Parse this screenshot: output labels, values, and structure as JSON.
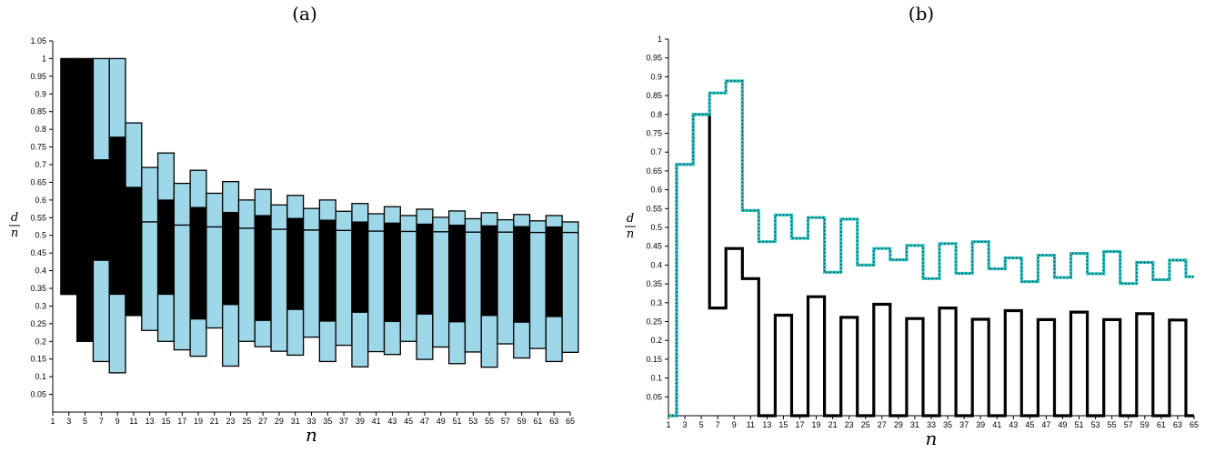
{
  "panel_titles": [
    "(a)",
    "(b)"
  ],
  "chart_data": [
    {
      "type": "bar",
      "subtype": "floating-range",
      "title": "(a)",
      "xlabel": "n",
      "ylabel_num": "d",
      "ylabel_den": "n",
      "xlim": [
        1,
        65
      ],
      "ylim": [
        0,
        1.05
      ],
      "xticks": [
        "1",
        "3",
        "5",
        "7",
        "9",
        "11",
        "13",
        "15",
        "17",
        "19",
        "21",
        "23",
        "25",
        "27",
        "29",
        "31",
        "33",
        "35",
        "37",
        "39",
        "41",
        "43",
        "45",
        "47",
        "49",
        "51",
        "53",
        "55",
        "57",
        "59",
        "61",
        "63",
        "65"
      ],
      "yticks": [
        "0.05",
        "0.1",
        "0.15",
        "0.2",
        "0.25",
        "0.3",
        "0.35",
        "0.4",
        "0.45",
        "0.5",
        "0.55",
        "0.6",
        "0.65",
        "0.7",
        "0.75",
        "0.8",
        "0.85",
        "0.9",
        "0.95",
        "1",
        "1.05"
      ],
      "outer_color": "#9ed7e8",
      "inner_color": "#000000",
      "bars": [
        {
          "x": 3,
          "outer": [
            0.333,
            1.0
          ],
          "inner": [
            0.333,
            1.0
          ]
        },
        {
          "x": 5,
          "outer": [
            0.2,
            1.0
          ],
          "inner": [
            0.2,
            1.0
          ]
        },
        {
          "x": 7,
          "outer": [
            0.143,
            1.0
          ],
          "inner": [
            0.429,
            0.714
          ]
        },
        {
          "x": 9,
          "outer": [
            0.111,
            1.0
          ],
          "inner": [
            0.333,
            0.778
          ]
        },
        {
          "x": 11,
          "outer": [
            0.273,
            0.818
          ],
          "inner": [
            0.273,
            0.636
          ]
        },
        {
          "x": 13,
          "outer": [
            0.231,
            0.692
          ],
          "inner": [
            0.538,
            0.538
          ]
        },
        {
          "x": 15,
          "outer": [
            0.2,
            0.733
          ],
          "inner": [
            0.333,
            0.6
          ]
        },
        {
          "x": 17,
          "outer": [
            0.176,
            0.647
          ],
          "inner": [
            0.529,
            0.529
          ]
        },
        {
          "x": 19,
          "outer": [
            0.158,
            0.684
          ],
          "inner": [
            0.263,
            0.579
          ]
        },
        {
          "x": 21,
          "outer": [
            0.238,
            0.619
          ],
          "inner": [
            0.524,
            0.524
          ]
        },
        {
          "x": 23,
          "outer": [
            0.13,
            0.652
          ],
          "inner": [
            0.304,
            0.565
          ]
        },
        {
          "x": 25,
          "outer": [
            0.2,
            0.6
          ],
          "inner": [
            0.52,
            0.52
          ]
        },
        {
          "x": 27,
          "outer": [
            0.185,
            0.63
          ],
          "inner": [
            0.259,
            0.556
          ]
        },
        {
          "x": 29,
          "outer": [
            0.172,
            0.586
          ],
          "inner": [
            0.517,
            0.517
          ]
        },
        {
          "x": 31,
          "outer": [
            0.161,
            0.613
          ],
          "inner": [
            0.29,
            0.548
          ]
        },
        {
          "x": 33,
          "outer": [
            0.212,
            0.576
          ],
          "inner": [
            0.515,
            0.515
          ]
        },
        {
          "x": 35,
          "outer": [
            0.143,
            0.6
          ],
          "inner": [
            0.257,
            0.543
          ]
        },
        {
          "x": 37,
          "outer": [
            0.189,
            0.568
          ],
          "inner": [
            0.514,
            0.514
          ]
        },
        {
          "x": 39,
          "outer": [
            0.128,
            0.59
          ],
          "inner": [
            0.282,
            0.538
          ]
        },
        {
          "x": 41,
          "outer": [
            0.171,
            0.561
          ],
          "inner": [
            0.512,
            0.512
          ]
        },
        {
          "x": 43,
          "outer": [
            0.163,
            0.581
          ],
          "inner": [
            0.256,
            0.535
          ]
        },
        {
          "x": 45,
          "outer": [
            0.2,
            0.556
          ],
          "inner": [
            0.511,
            0.511
          ]
        },
        {
          "x": 47,
          "outer": [
            0.149,
            0.574
          ],
          "inner": [
            0.277,
            0.532
          ]
        },
        {
          "x": 49,
          "outer": [
            0.184,
            0.551
          ],
          "inner": [
            0.51,
            0.51
          ]
        },
        {
          "x": 51,
          "outer": [
            0.137,
            0.569
          ],
          "inner": [
            0.255,
            0.529
          ]
        },
        {
          "x": 53,
          "outer": [
            0.17,
            0.547
          ],
          "inner": [
            0.509,
            0.509
          ]
        },
        {
          "x": 55,
          "outer": [
            0.127,
            0.564
          ],
          "inner": [
            0.273,
            0.527
          ]
        },
        {
          "x": 57,
          "outer": [
            0.193,
            0.544
          ],
          "inner": [
            0.509,
            0.509
          ]
        },
        {
          "x": 59,
          "outer": [
            0.153,
            0.559
          ],
          "inner": [
            0.254,
            0.525
          ]
        },
        {
          "x": 61,
          "outer": [
            0.18,
            0.541
          ],
          "inner": [
            0.508,
            0.508
          ]
        },
        {
          "x": 63,
          "outer": [
            0.143,
            0.556
          ],
          "inner": [
            0.27,
            0.524
          ]
        },
        {
          "x": 65,
          "outer": [
            0.169,
            0.538
          ],
          "inner": [
            0.508,
            0.508
          ]
        }
      ]
    },
    {
      "type": "line",
      "subtype": "step",
      "title": "(b)",
      "xlabel": "n",
      "ylabel_num": "d",
      "ylabel_den": "n",
      "xlim": [
        1,
        65
      ],
      "ylim": [
        0,
        1
      ],
      "xticks": [
        "1",
        "3",
        "5",
        "7",
        "9",
        "11",
        "13",
        "15",
        "17",
        "19",
        "21",
        "23",
        "25",
        "27",
        "29",
        "31",
        "33",
        "35",
        "37",
        "39",
        "41",
        "43",
        "45",
        "47",
        "49",
        "51",
        "53",
        "55",
        "57",
        "59",
        "61",
        "63",
        "65"
      ],
      "yticks": [
        "0.05",
        "0.1",
        "0.15",
        "0.2",
        "0.25",
        "0.3",
        "0.35",
        "0.4",
        "0.45",
        "0.5",
        "0.55",
        "0.6",
        "0.65",
        "0.7",
        "0.75",
        "0.8",
        "0.85",
        "0.9",
        "0.95",
        "1"
      ],
      "series": [
        {
          "color": "#000000",
          "style": "solid-thick",
          "points": [
            [
              1,
              0
            ],
            [
              2,
              0
            ],
            [
              2,
              0.667
            ],
            [
              4,
              0.667
            ],
            [
              4,
              0.8
            ],
            [
              6,
              0.8
            ],
            [
              6,
              0.286
            ],
            [
              8,
              0.286
            ],
            [
              8,
              0.444
            ],
            [
              10,
              0.444
            ],
            [
              10,
              0.364
            ],
            [
              12,
              0.364
            ],
            [
              12,
              0
            ],
            [
              14,
              0
            ],
            [
              14,
              0.267
            ],
            [
              16,
              0.267
            ],
            [
              16,
              0
            ],
            [
              18,
              0
            ],
            [
              18,
              0.316
            ],
            [
              20,
              0.316
            ],
            [
              20,
              0
            ],
            [
              22,
              0
            ],
            [
              22,
              0.261
            ],
            [
              24,
              0.261
            ],
            [
              24,
              0
            ],
            [
              26,
              0
            ],
            [
              26,
              0.296
            ],
            [
              28,
              0.296
            ],
            [
              28,
              0
            ],
            [
              30,
              0
            ],
            [
              30,
              0.258
            ],
            [
              32,
              0.258
            ],
            [
              32,
              0
            ],
            [
              34,
              0
            ],
            [
              34,
              0.286
            ],
            [
              36,
              0.286
            ],
            [
              36,
              0
            ],
            [
              38,
              0
            ],
            [
              38,
              0.256
            ],
            [
              40,
              0.256
            ],
            [
              40,
              0
            ],
            [
              42,
              0
            ],
            [
              42,
              0.279
            ],
            [
              44,
              0.279
            ],
            [
              44,
              0
            ],
            [
              46,
              0
            ],
            [
              46,
              0.255
            ],
            [
              48,
              0.255
            ],
            [
              48,
              0
            ],
            [
              50,
              0
            ],
            [
              50,
              0.275
            ],
            [
              52,
              0.275
            ],
            [
              52,
              0
            ],
            [
              54,
              0
            ],
            [
              54,
              0.255
            ],
            [
              56,
              0.255
            ],
            [
              56,
              0
            ],
            [
              58,
              0
            ],
            [
              58,
              0.271
            ],
            [
              60,
              0.271
            ],
            [
              60,
              0
            ],
            [
              62,
              0
            ],
            [
              62,
              0.254
            ],
            [
              64,
              0.254
            ],
            [
              64,
              0
            ],
            [
              65,
              0
            ]
          ]
        },
        {
          "color": "#2ec4c4",
          "style": "dotted",
          "points": [
            [
              1,
              0
            ],
            [
              2,
              0
            ],
            [
              2,
              0.667
            ],
            [
              4,
              0.667
            ],
            [
              4,
              0.8
            ],
            [
              5,
              0.8
            ],
            [
              5,
              0.8
            ],
            [
              6,
              0.8
            ],
            [
              6,
              0.857
            ],
            [
              7,
              0.857
            ],
            [
              7,
              0.857
            ],
            [
              8,
              0.857
            ],
            [
              8,
              0.889
            ],
            [
              10,
              0.889
            ],
            [
              10,
              0.545
            ],
            [
              12,
              0.545
            ],
            [
              12,
              0.462
            ],
            [
              14,
              0.462
            ],
            [
              14,
              0.533
            ],
            [
              16,
              0.533
            ],
            [
              16,
              0.471
            ],
            [
              18,
              0.471
            ],
            [
              18,
              0.526
            ],
            [
              20,
              0.526
            ],
            [
              20,
              0.381
            ],
            [
              22,
              0.381
            ],
            [
              22,
              0.522
            ],
            [
              24,
              0.522
            ],
            [
              24,
              0.4
            ],
            [
              26,
              0.4
            ],
            [
              26,
              0.444
            ],
            [
              28,
              0.444
            ],
            [
              28,
              0.414
            ],
            [
              30,
              0.414
            ],
            [
              30,
              0.452
            ],
            [
              32,
              0.452
            ],
            [
              32,
              0.364
            ],
            [
              34,
              0.364
            ],
            [
              34,
              0.457
            ],
            [
              36,
              0.457
            ],
            [
              36,
              0.378
            ],
            [
              38,
              0.378
            ],
            [
              38,
              0.462
            ],
            [
              40,
              0.462
            ],
            [
              40,
              0.39
            ],
            [
              42,
              0.39
            ],
            [
              42,
              0.419
            ],
            [
              44,
              0.419
            ],
            [
              44,
              0.356
            ],
            [
              46,
              0.356
            ],
            [
              46,
              0.426
            ],
            [
              48,
              0.426
            ],
            [
              48,
              0.367
            ],
            [
              50,
              0.367
            ],
            [
              50,
              0.431
            ],
            [
              52,
              0.431
            ],
            [
              52,
              0.377
            ],
            [
              54,
              0.377
            ],
            [
              54,
              0.436
            ],
            [
              56,
              0.436
            ],
            [
              56,
              0.351
            ],
            [
              58,
              0.351
            ],
            [
              58,
              0.407
            ],
            [
              60,
              0.407
            ],
            [
              60,
              0.361
            ],
            [
              62,
              0.361
            ],
            [
              62,
              0.413
            ],
            [
              64,
              0.413
            ],
            [
              64,
              0.369
            ],
            [
              65,
              0.369
            ]
          ]
        }
      ]
    }
  ]
}
